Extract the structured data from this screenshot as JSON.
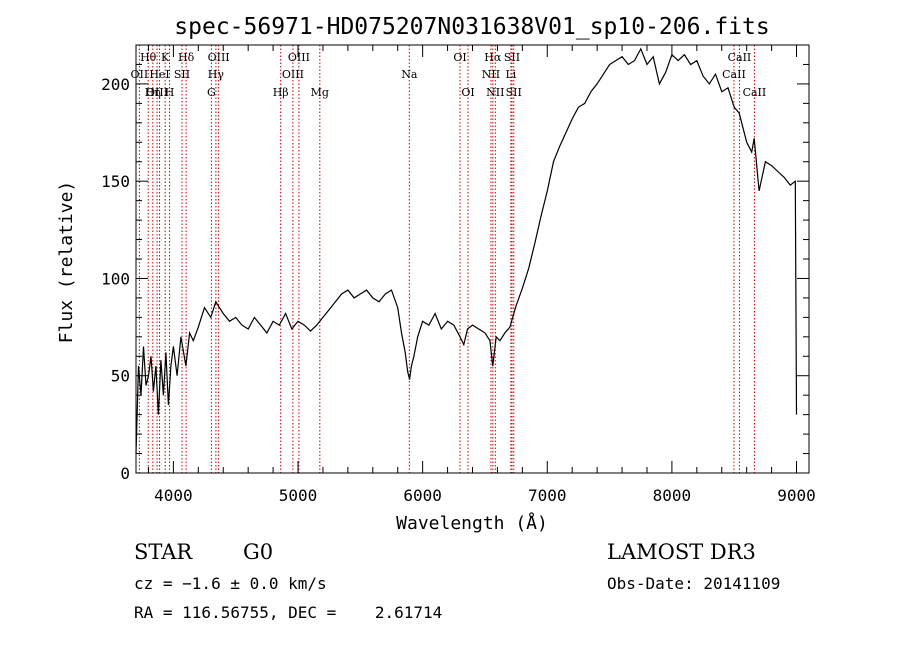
{
  "chart_data": {
    "type": "line",
    "title": "spec-56971-HD075207N031638V01_sp10-206.fits",
    "xlabel": "Wavelength (Å)",
    "ylabel": "Flux (relative)",
    "xlim": [
      3700,
      9100
    ],
    "ylim": [
      0,
      220
    ],
    "xticks": [
      4000,
      5000,
      6000,
      7000,
      8000,
      9000
    ],
    "yticks": [
      0,
      50,
      100,
      150,
      200
    ],
    "grid": false,
    "series": [
      {
        "color": "#000000",
        "x": [
          3700,
          3720,
          3740,
          3760,
          3780,
          3800,
          3820,
          3840,
          3860,
          3880,
          3900,
          3920,
          3940,
          3960,
          3980,
          4000,
          4030,
          4060,
          4100,
          4130,
          4160,
          4200,
          4250,
          4300,
          4340,
          4400,
          4450,
          4500,
          4550,
          4600,
          4650,
          4700,
          4750,
          4800,
          4850,
          4900,
          4950,
          5000,
          5050,
          5100,
          5150,
          5200,
          5250,
          5300,
          5350,
          5400,
          5450,
          5500,
          5550,
          5600,
          5650,
          5700,
          5750,
          5800,
          5830,
          5860,
          5880,
          5895,
          5910,
          5930,
          5960,
          6000,
          6050,
          6100,
          6150,
          6200,
          6250,
          6300,
          6330,
          6360,
          6400,
          6450,
          6500,
          6540,
          6563,
          6590,
          6620,
          6660,
          6700,
          6750,
          6800,
          6850,
          6900,
          6950,
          7000,
          7050,
          7100,
          7150,
          7200,
          7250,
          7300,
          7350,
          7400,
          7450,
          7500,
          7550,
          7600,
          7650,
          7700,
          7750,
          7800,
          7850,
          7900,
          7950,
          8000,
          8050,
          8100,
          8150,
          8200,
          8250,
          8300,
          8350,
          8400,
          8450,
          8500,
          8540,
          8560,
          8600,
          8640,
          8660,
          8700,
          8750,
          8800,
          8850,
          8900,
          8950,
          8990,
          9000
        ],
        "y": [
          10,
          55,
          40,
          65,
          45,
          50,
          60,
          42,
          55,
          30,
          58,
          40,
          62,
          35,
          55,
          65,
          50,
          70,
          55,
          72,
          68,
          75,
          85,
          80,
          88,
          82,
          78,
          80,
          76,
          74,
          80,
          76,
          72,
          78,
          76,
          82,
          74,
          78,
          76,
          73,
          76,
          80,
          84,
          88,
          92,
          94,
          90,
          92,
          94,
          90,
          88,
          92,
          94,
          85,
          72,
          62,
          52,
          48,
          55,
          60,
          70,
          78,
          76,
          82,
          74,
          78,
          76,
          70,
          66,
          74,
          76,
          74,
          72,
          68,
          55,
          70,
          68,
          72,
          75,
          86,
          95,
          105,
          118,
          132,
          145,
          160,
          168,
          175,
          182,
          188,
          190,
          196,
          200,
          205,
          210,
          212,
          214,
          210,
          212,
          218,
          210,
          214,
          200,
          206,
          215,
          212,
          215,
          210,
          212,
          204,
          200,
          205,
          196,
          198,
          188,
          185,
          180,
          170,
          165,
          172,
          145,
          160,
          158,
          155,
          152,
          148,
          150,
          30
        ]
      }
    ],
    "line_markers": [
      {
        "label": "Hθ",
        "wave": 3798,
        "row": 0
      },
      {
        "label": "OII",
        "wave": 3727,
        "row": 1
      },
      {
        "label": "OIII",
        "wave": 3869,
        "row": 2
      },
      {
        "label": "Hη",
        "wave": 3835,
        "row": 2
      },
      {
        "label": "HeI",
        "wave": 3889,
        "row": 1
      },
      {
        "label": "K",
        "wave": 3934,
        "row": 0
      },
      {
        "label": "H",
        "wave": 3969,
        "row": 2
      },
      {
        "label": "SII",
        "wave": 4069,
        "row": 1
      },
      {
        "label": "Hδ",
        "wave": 4102,
        "row": 0
      },
      {
        "label": "OIII",
        "wave": 4363,
        "row": 0
      },
      {
        "label": "Hγ",
        "wave": 4341,
        "row": 1
      },
      {
        "label": "G",
        "wave": 4305,
        "row": 2
      },
      {
        "label": "Hβ",
        "wave": 4861,
        "row": 2
      },
      {
        "label": "OIII",
        "wave": 5007,
        "row": 0
      },
      {
        "label": "OIII",
        "wave": 4959,
        "row": 1
      },
      {
        "label": "Mg",
        "wave": 5175,
        "row": 2
      },
      {
        "label": "Na",
        "wave": 5893,
        "row": 1
      },
      {
        "label": "OI",
        "wave": 6300,
        "row": 0
      },
      {
        "label": "OI",
        "wave": 6364,
        "row": 2
      },
      {
        "label": "Hα",
        "wave": 6563,
        "row": 0
      },
      {
        "label": "NII",
        "wave": 6548,
        "row": 1
      },
      {
        "label": "NII",
        "wave": 6583,
        "row": 2
      },
      {
        "label": "SII",
        "wave": 6717,
        "row": 0
      },
      {
        "label": "Li",
        "wave": 6708,
        "row": 1
      },
      {
        "label": "SII",
        "wave": 6731,
        "row": 2
      },
      {
        "label": "CaII",
        "wave": 8542,
        "row": 0
      },
      {
        "label": "CaII",
        "wave": 8498,
        "row": 1
      },
      {
        "label": "CaII",
        "wave": 8662,
        "row": 2
      }
    ]
  },
  "info": {
    "class": "STAR",
    "subclass": "G0",
    "survey": "LAMOST DR3",
    "cz": "cz = −1.6 ± 0.0 km/s",
    "obs_date": "Obs-Date: 20141109",
    "radec": "RA = 116.56755, DEC =    2.61714"
  }
}
